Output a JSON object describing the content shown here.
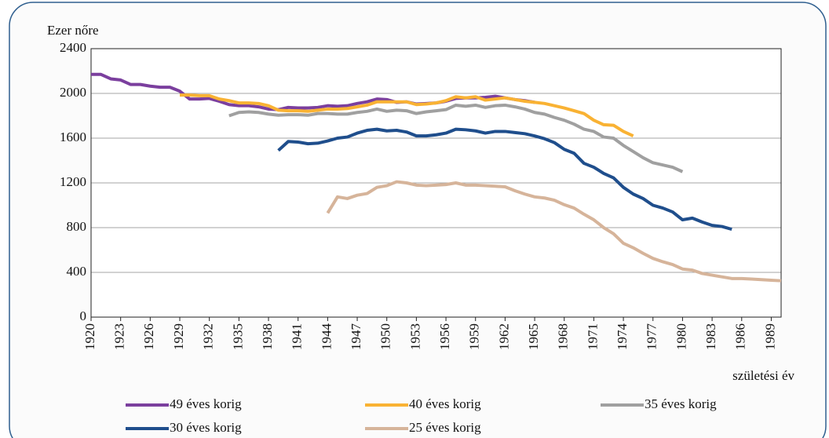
{
  "chart_data": {
    "type": "line",
    "y_label": "Ezer nőre",
    "x_label": "születési év",
    "ylim": [
      0,
      2400
    ],
    "yticks": [
      0,
      400,
      800,
      1200,
      1600,
      2000,
      2400
    ],
    "xlim": [
      1920,
      1990
    ],
    "xticks": [
      1920,
      1923,
      1926,
      1929,
      1932,
      1935,
      1938,
      1941,
      1944,
      1947,
      1950,
      1953,
      1956,
      1959,
      1962,
      1965,
      1968,
      1971,
      1974,
      1977,
      1980,
      1983,
      1986,
      1989
    ],
    "grid": true,
    "x": [
      1920,
      1921,
      1922,
      1923,
      1924,
      1925,
      1926,
      1927,
      1928,
      1929,
      1930,
      1931,
      1932,
      1933,
      1934,
      1935,
      1936,
      1937,
      1938,
      1939,
      1940,
      1941,
      1942,
      1943,
      1944,
      1945,
      1946,
      1947,
      1948,
      1949,
      1950,
      1951,
      1952,
      1953,
      1954,
      1955,
      1956,
      1957,
      1958,
      1959,
      1960,
      1961,
      1962,
      1963,
      1964,
      1965,
      1966,
      1967,
      1968,
      1969,
      1970,
      1971,
      1972,
      1973,
      1974,
      1975,
      1976,
      1977,
      1978,
      1979,
      1980,
      1981,
      1982,
      1983,
      1984,
      1985,
      1986,
      1987,
      1988,
      1989,
      1990
    ],
    "series": [
      {
        "name": "49 éves korig",
        "color": "#7b3f9e",
        "values": [
          2170,
          2170,
          2130,
          2120,
          2080,
          2080,
          2065,
          2055,
          2055,
          2020,
          1950,
          1950,
          1955,
          1930,
          1900,
          1890,
          1890,
          1880,
          1860,
          1855,
          1875,
          1870,
          1870,
          1875,
          1890,
          1885,
          1890,
          1910,
          1925,
          1950,
          1945,
          1920,
          1925,
          1905,
          1910,
          1915,
          1930,
          1955,
          1960,
          1960,
          1965,
          1975,
          1960,
          1945,
          1935,
          1920,
          null,
          null,
          null,
          null,
          null,
          null,
          null,
          null,
          null,
          null,
          null,
          null,
          null,
          null,
          null,
          null,
          null,
          null,
          null,
          null,
          null,
          null,
          null,
          null,
          null
        ]
      },
      {
        "name": "40 éves korig",
        "color": "#f9b233",
        "values": [
          null,
          null,
          null,
          null,
          null,
          null,
          null,
          null,
          null,
          1985,
          1985,
          1980,
          1980,
          1950,
          1935,
          1915,
          1915,
          1910,
          1890,
          1850,
          1845,
          1845,
          1840,
          1850,
          1860,
          1860,
          1865,
          1880,
          1895,
          1925,
          1925,
          1925,
          1925,
          1900,
          1905,
          1915,
          1935,
          1970,
          1960,
          1970,
          1940,
          1950,
          1960,
          1945,
          1930,
          1920,
          1910,
          1890,
          1870,
          1845,
          1820,
          1760,
          1720,
          1715,
          1660,
          1620,
          null,
          null,
          null,
          null,
          null,
          null,
          null,
          null,
          null,
          null,
          null,
          null,
          null,
          null,
          null
        ]
      },
      {
        "name": "35 éves korig",
        "color": "#a0a0a0",
        "values": [
          null,
          null,
          null,
          null,
          null,
          null,
          null,
          null,
          null,
          null,
          null,
          null,
          null,
          null,
          1800,
          1830,
          1835,
          1830,
          1815,
          1805,
          1810,
          1810,
          1805,
          1820,
          1820,
          1815,
          1815,
          1830,
          1840,
          1860,
          1840,
          1850,
          1845,
          1820,
          1835,
          1845,
          1855,
          1895,
          1885,
          1895,
          1875,
          1890,
          1895,
          1880,
          1860,
          1830,
          1815,
          1785,
          1760,
          1725,
          1680,
          1660,
          1610,
          1600,
          1535,
          1480,
          1425,
          1380,
          1360,
          1340,
          1300,
          null,
          null,
          null,
          null,
          null,
          null,
          null,
          null,
          null,
          null
        ]
      },
      {
        "name": "30 éves korig",
        "color": "#1f4e8c",
        "values": [
          null,
          null,
          null,
          null,
          null,
          null,
          null,
          null,
          null,
          null,
          null,
          null,
          null,
          null,
          null,
          null,
          null,
          null,
          null,
          1490,
          1570,
          1565,
          1550,
          1555,
          1575,
          1600,
          1610,
          1645,
          1670,
          1680,
          1665,
          1670,
          1655,
          1620,
          1620,
          1630,
          1645,
          1680,
          1675,
          1665,
          1645,
          1660,
          1660,
          1650,
          1640,
          1620,
          1595,
          1560,
          1500,
          1465,
          1375,
          1340,
          1285,
          1245,
          1160,
          1100,
          1060,
          1000,
          975,
          940,
          870,
          885,
          850,
          820,
          810,
          785,
          null,
          null,
          null,
          null,
          null
        ]
      },
      {
        "name": "25 éves korig",
        "color": "#d6b49a",
        "values": [
          null,
          null,
          null,
          null,
          null,
          null,
          null,
          null,
          null,
          null,
          null,
          null,
          null,
          null,
          null,
          null,
          null,
          null,
          null,
          null,
          null,
          null,
          null,
          null,
          930,
          1075,
          1060,
          1090,
          1105,
          1160,
          1175,
          1210,
          1200,
          1180,
          1175,
          1180,
          1185,
          1200,
          1180,
          1180,
          1175,
          1170,
          1165,
          1130,
          1100,
          1075,
          1065,
          1045,
          1005,
          975,
          920,
          870,
          800,
          745,
          660,
          620,
          570,
          525,
          495,
          470,
          430,
          420,
          390,
          375,
          360,
          345,
          345,
          340,
          335,
          330,
          325
        ]
      }
    ]
  }
}
